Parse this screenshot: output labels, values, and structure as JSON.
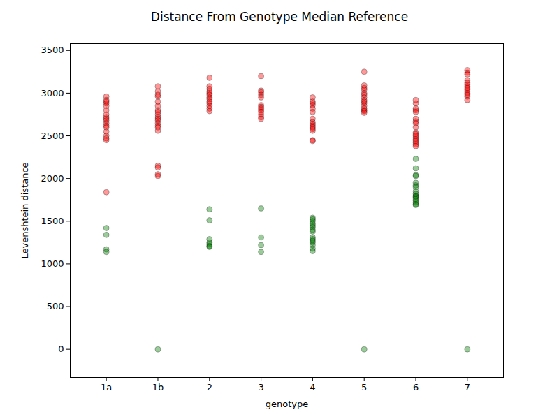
{
  "chart_data": {
    "type": "scatter",
    "title": "Distance From Genotype Median Reference",
    "x_label": "genotype",
    "y_label": "Levenshtein distance",
    "categories": [
      "1a",
      "1b",
      "2",
      "3",
      "4",
      "5",
      "6",
      "7"
    ],
    "xlim": [
      -0.7,
      7.7
    ],
    "ylim": [
      -330,
      3580
    ],
    "yticks": [
      0,
      500,
      1000,
      1500,
      2000,
      2500,
      3000,
      3500
    ],
    "grid": false,
    "marker": "circle",
    "series": [
      {
        "color": "#ff0000",
        "x": [
          "1a",
          "1a",
          "1a",
          "1a",
          "1a",
          "1a",
          "1a",
          "1a",
          "1a",
          "1a",
          "1a",
          "1a",
          "1a",
          "1a",
          "1a",
          "1a",
          "1a",
          "1a",
          "1b",
          "1b",
          "1b",
          "1b",
          "1b",
          "1b",
          "1b",
          "1b",
          "1b",
          "1b",
          "1b",
          "1b",
          "1b",
          "1b",
          "1b",
          "1b",
          "1b",
          "1b",
          "1b",
          "1b",
          "2",
          "2",
          "2",
          "2",
          "2",
          "2",
          "2",
          "2",
          "2",
          "2",
          "2",
          "2",
          "2",
          "3",
          "3",
          "3",
          "3",
          "3",
          "3",
          "3",
          "3",
          "3",
          "3",
          "3",
          "3",
          "3",
          "4",
          "4",
          "4",
          "4",
          "4",
          "4",
          "4",
          "4",
          "4",
          "4",
          "4",
          "4",
          "4",
          "4",
          "4",
          "5",
          "5",
          "5",
          "5",
          "5",
          "5",
          "5",
          "5",
          "5",
          "5",
          "5",
          "5",
          "5",
          "5",
          "5",
          "6",
          "6",
          "6",
          "6",
          "6",
          "6",
          "6",
          "6",
          "6",
          "6",
          "6",
          "6",
          "6",
          "6",
          "6",
          "6",
          "6",
          "6",
          "7",
          "7",
          "7",
          "7",
          "7",
          "7",
          "7",
          "7",
          "7",
          "7",
          "7",
          "7",
          "7",
          "7"
        ],
        "values": [
          2960,
          2920,
          2900,
          2880,
          2850,
          2800,
          2750,
          2720,
          2700,
          2680,
          2650,
          2620,
          2600,
          2550,
          2500,
          2470,
          2450,
          1840,
          3080,
          3020,
          2980,
          2960,
          2900,
          2850,
          2800,
          2780,
          2750,
          2720,
          2700,
          2680,
          2650,
          2620,
          2600,
          2560,
          2150,
          2130,
          2050,
          2030,
          3180,
          3080,
          3050,
          3020,
          3000,
          2980,
          2950,
          2930,
          2900,
          2880,
          2850,
          2820,
          2790,
          3200,
          3030,
          3010,
          2980,
          2950,
          2860,
          2840,
          2820,
          2800,
          2780,
          2750,
          2720,
          2700,
          2950,
          2900,
          2880,
          2860,
          2820,
          2780,
          2700,
          2660,
          2640,
          2620,
          2600,
          2580,
          2560,
          2450,
          2440,
          3250,
          3090,
          3060,
          3040,
          3000,
          2980,
          2950,
          2920,
          2900,
          2880,
          2850,
          2820,
          2800,
          2790,
          2770,
          2920,
          2880,
          2820,
          2800,
          2780,
          2700,
          2670,
          2650,
          2600,
          2540,
          2520,
          2500,
          2480,
          2460,
          2440,
          2420,
          2400,
          2380,
          3270,
          3240,
          3220,
          3150,
          3120,
          3100,
          3080,
          3060,
          3040,
          3020,
          3000,
          2980,
          2960,
          2920
        ]
      },
      {
        "color": "#008000",
        "x": [
          "1a",
          "1a",
          "1a",
          "1a",
          "1b",
          "2",
          "2",
          "2",
          "2",
          "2",
          "2",
          "2",
          "3",
          "3",
          "3",
          "3",
          "4",
          "4",
          "4",
          "4",
          "4",
          "4",
          "4",
          "4",
          "4",
          "4",
          "4",
          "4",
          "4",
          "4",
          "4",
          "5",
          "6",
          "6",
          "6",
          "6",
          "6",
          "6",
          "6",
          "6",
          "6",
          "6",
          "6",
          "6",
          "6",
          "6",
          "6",
          "6",
          "6",
          "7"
        ],
        "values": [
          1420,
          1340,
          1170,
          1140,
          0,
          1640,
          1510,
          1290,
          1250,
          1230,
          1210,
          1200,
          1650,
          1310,
          1220,
          1140,
          1540,
          1520,
          1500,
          1470,
          1450,
          1430,
          1400,
          1380,
          1310,
          1290,
          1270,
          1250,
          1220,
          1180,
          1150,
          0,
          2230,
          2120,
          2040,
          2030,
          1950,
          1920,
          1900,
          1850,
          1820,
          1800,
          1790,
          1780,
          1760,
          1740,
          1720,
          1700,
          1690,
          0
        ]
      }
    ]
  }
}
